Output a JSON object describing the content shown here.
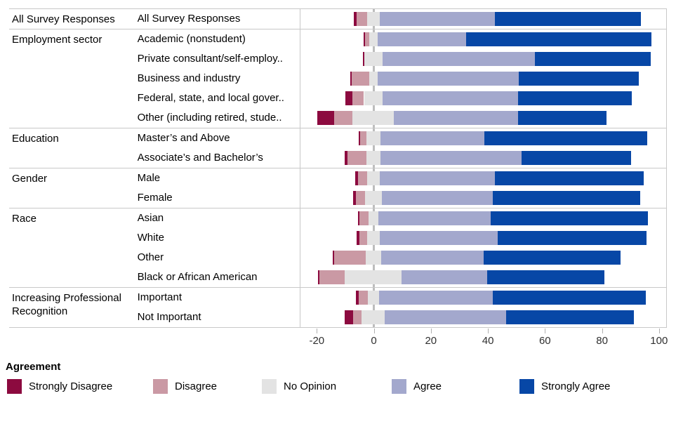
{
  "chart_data": {
    "type": "bar",
    "subtype": "diverging_stacked_likert",
    "legend_title": "Agreement",
    "levels": [
      {
        "label": "Strongly Disagree",
        "color": "#8C0A3F"
      },
      {
        "label": "Disagree",
        "color": "#CA99A4"
      },
      {
        "label": "No Opinion",
        "color": "#E3E3E3"
      },
      {
        "label": "Agree",
        "color": "#A3A8CD"
      },
      {
        "label": "Strongly Agree",
        "color": "#0747A6"
      }
    ],
    "axis": {
      "ticks": [
        -20,
        0,
        20,
        40,
        60,
        80,
        100
      ],
      "domain": [
        -25.5,
        103
      ],
      "zero_line_color": "#bdbdbd",
      "note": "values are percentages; No Opinion segment is centered on zero"
    },
    "groups": [
      {
        "label": "All Survey Responses",
        "rows": [
          {
            "label": "All Survey Responses",
            "values": [
              1,
              3.5,
              4.5,
              40.5,
              51
            ]
          }
        ]
      },
      {
        "label": "Employment sector",
        "rows": [
          {
            "label": "Academic (nonstudent)",
            "values": [
              0.5,
              1.5,
              3,
              31,
              65
            ]
          },
          {
            "label": "Private consultant/self-employ..",
            "values": [
              0.5,
              0,
              6.5,
              53.5,
              40.5
            ]
          },
          {
            "label": "Business and industry",
            "values": [
              0.5,
              6,
              3,
              49.5,
              42
            ]
          },
          {
            "label": "Federal, state, and local gover..",
            "values": [
              2.5,
              4,
              6.5,
              47.5,
              40
            ]
          },
          {
            "label": "Other (including retired, stude..",
            "values": [
              6,
              6.5,
              14.5,
              43.5,
              31
            ]
          }
        ]
      },
      {
        "label": "Education",
        "rows": [
          {
            "label": "Master’s and Above",
            "values": [
              0.5,
              2,
              5,
              36.5,
              57
            ]
          },
          {
            "label": "Associate’s and Bachelor’s",
            "values": [
              1,
              6.5,
              5,
              49.5,
              38.5
            ]
          }
        ]
      },
      {
        "label": "Gender",
        "rows": [
          {
            "label": "Male",
            "values": [
              1,
              3,
              4.5,
              40.5,
              52
            ]
          },
          {
            "label": "Female",
            "values": [
              1,
              3,
              6,
              39,
              51.5
            ]
          }
        ]
      },
      {
        "label": "Race",
        "rows": [
          {
            "label": "Asian",
            "values": [
              0.5,
              3,
              3.5,
              39.5,
              55
            ]
          },
          {
            "label": "White",
            "values": [
              1,
              2.5,
              4.5,
              41.5,
              52
            ]
          },
          {
            "label": "Other",
            "values": [
              0.5,
              11,
              5.5,
              36,
              48
            ]
          },
          {
            "label": "Black or African American",
            "values": [
              0.5,
              9,
              20,
              30,
              41
            ]
          }
        ]
      },
      {
        "label": "Increasing Professional Recognition",
        "rows": [
          {
            "label": "Important",
            "values": [
              1,
              3,
              4,
              40,
              53.5
            ]
          },
          {
            "label": "Not Important",
            "values": [
              3,
              3,
              8,
              42.5,
              45
            ]
          }
        ]
      }
    ],
    "legend_layout": {
      "item_lefts": [
        10,
        218,
        373,
        558,
        740
      ]
    }
  }
}
